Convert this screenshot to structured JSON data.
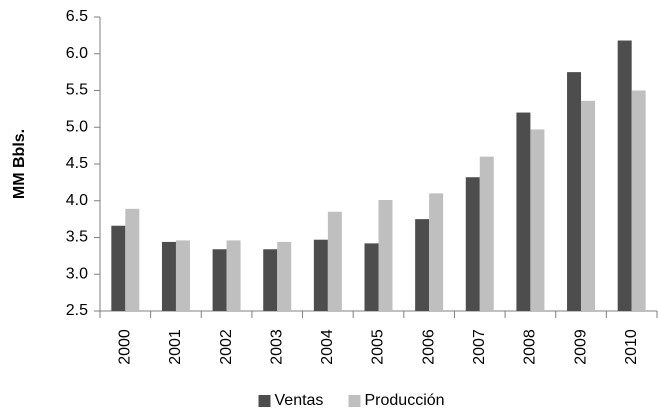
{
  "chart_data": {
    "type": "bar",
    "y_label": "MM Bbls.",
    "categories": [
      "2000",
      "2001",
      "2002",
      "2003",
      "2004",
      "2005",
      "2006",
      "2007",
      "2008",
      "2009",
      "2010"
    ],
    "series": [
      {
        "name": "Ventas",
        "color": "#4d4d4d",
        "values": [
          3.66,
          3.44,
          3.34,
          3.34,
          3.47,
          3.42,
          3.75,
          4.32,
          5.2,
          5.75,
          6.18
        ]
      },
      {
        "name": "Producción",
        "color": "#bfbfbf",
        "values": [
          3.89,
          3.46,
          3.46,
          3.44,
          3.85,
          4.01,
          4.1,
          4.6,
          4.97,
          5.36,
          5.5
        ]
      }
    ],
    "ylim": [
      2.5,
      6.5
    ],
    "yticks": [
      2.5,
      {
        "value": 3,
        "label": "3.0"
      },
      3.5,
      {
        "value": 4,
        "label": "4.0"
      },
      4.5,
      {
        "value": 5,
        "label": "5.0"
      },
      5.5,
      {
        "value": 6,
        "label": "6.0"
      },
      6.5
    ],
    "grid": false,
    "legend": "bottom"
  }
}
